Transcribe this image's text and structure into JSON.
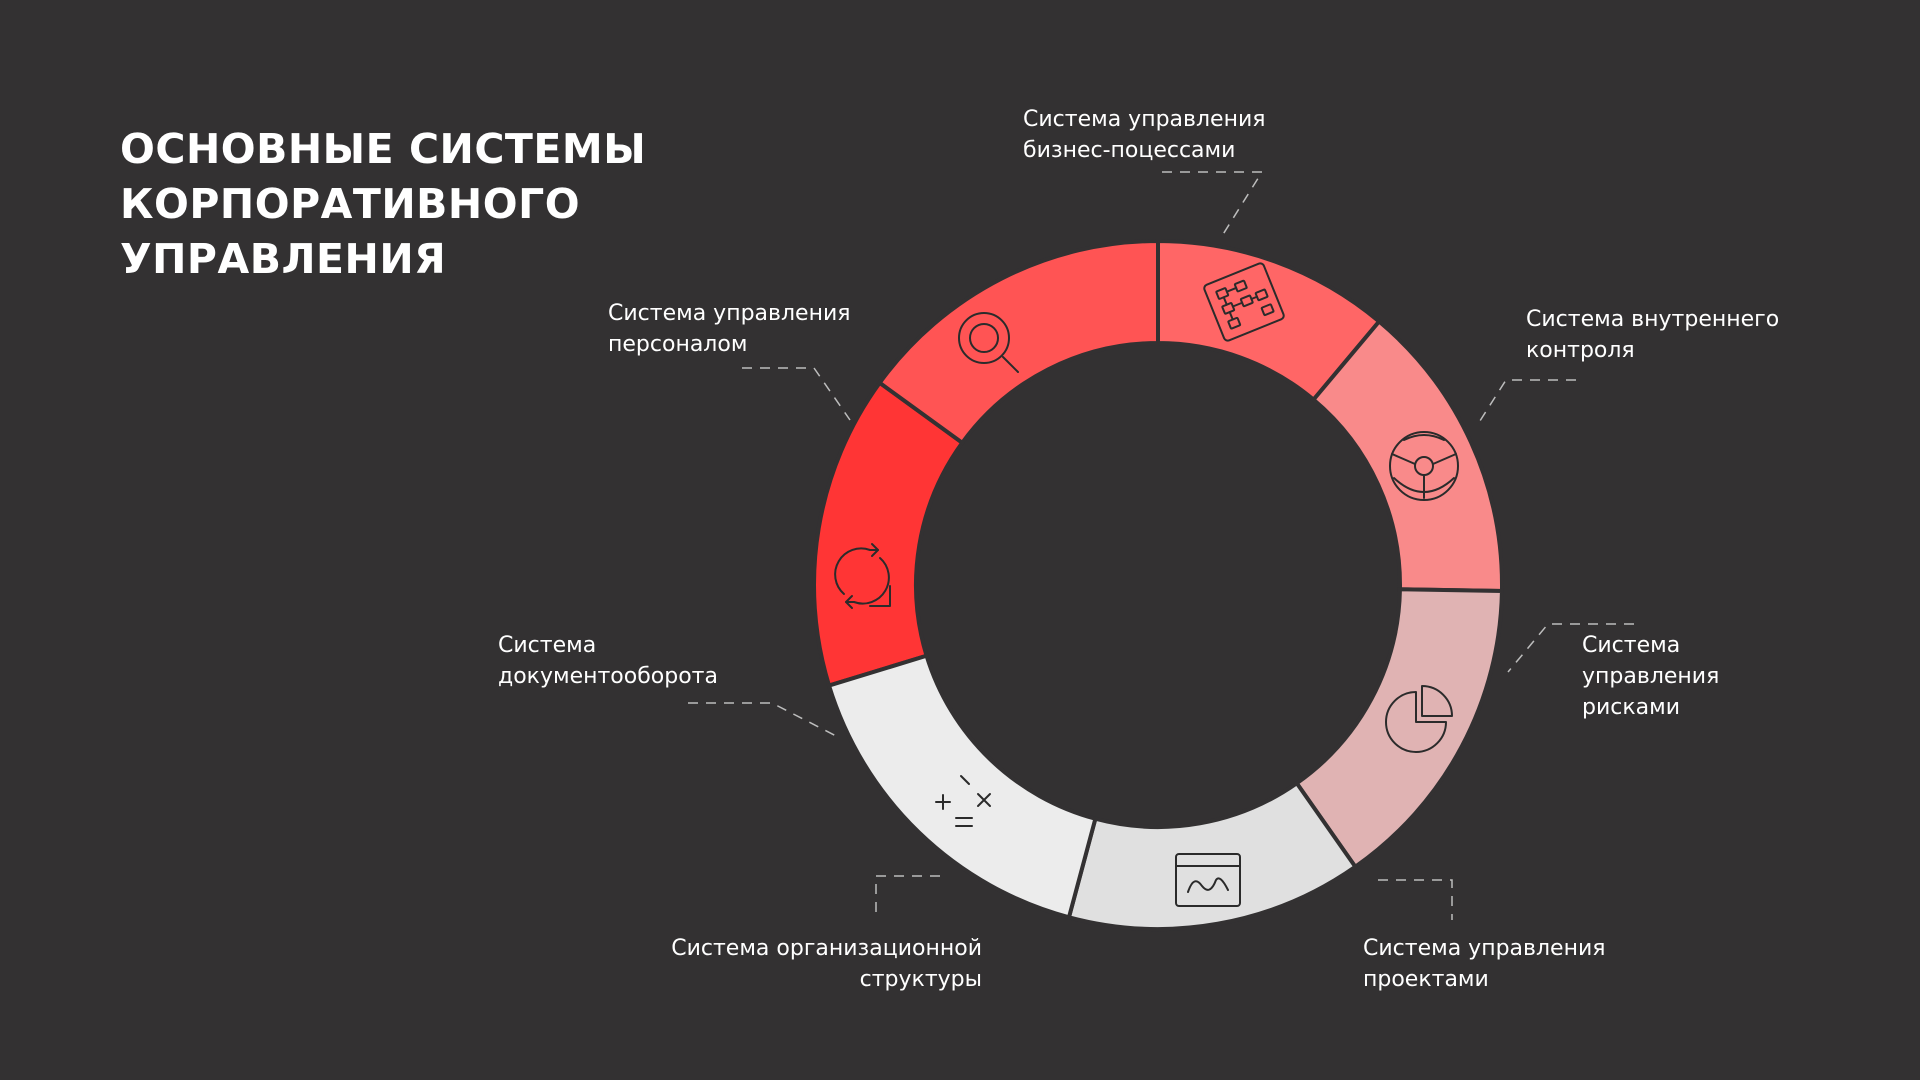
{
  "title": {
    "line1": "ОСНОВНЫЕ СИСТЕМЫ",
    "line2": "КОРПОРАТИВНОГО",
    "line3": "УПРАВЛЕНИЯ"
  },
  "segments": [
    {
      "id": "business-processes",
      "icon": "flowchart-icon",
      "color": "#ff3535",
      "lines": [
        "Система управления",
        "бизнес-поцессами"
      ]
    },
    {
      "id": "internal-control",
      "icon": "steering-wheel-icon",
      "color": "#ff5454",
      "lines": [
        "Система внутреннего",
        "контроля"
      ]
    },
    {
      "id": "risk-management",
      "icon": "pie-chart-icon",
      "color": "#ff6666",
      "lines": [
        "Система",
        "управления",
        "рисками"
      ]
    },
    {
      "id": "project-management",
      "icon": "window-graph-icon",
      "color": "#f98a8a",
      "lines": [
        "Система управления",
        "проектами"
      ]
    },
    {
      "id": "org-structure",
      "icon": "math-symbols-icon",
      "color": "#e0b3b3",
      "lines": [
        "Система организационной",
        "структуры"
      ]
    },
    {
      "id": "document-flow",
      "icon": "refresh-arrows-icon",
      "color": "#e0e0e0",
      "lines": [
        "Система",
        "документооборота"
      ]
    },
    {
      "id": "personnel",
      "icon": "magnifier-icon",
      "color": "#ececec",
      "lines": [
        "Система управления",
        "персоналом"
      ]
    }
  ]
}
